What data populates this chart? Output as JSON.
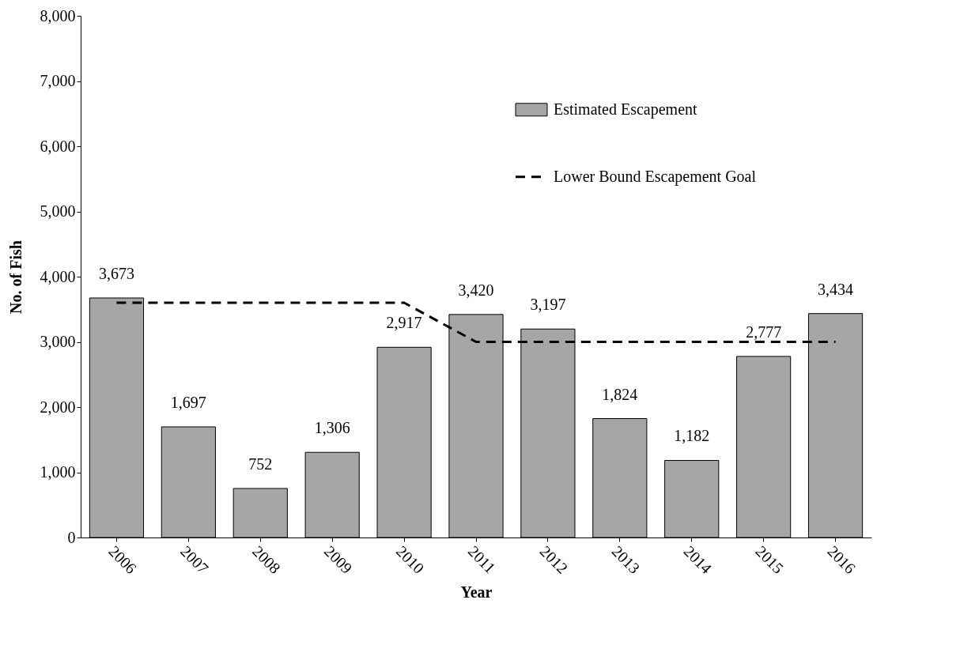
{
  "chart_data": {
    "type": "bar",
    "xlabel": "Year",
    "ylabel": "No. of  Fish",
    "categories": [
      "2006",
      "2007",
      "2008",
      "2009",
      "2010",
      "2011",
      "2012",
      "2013",
      "2014",
      "2015",
      "2016"
    ],
    "series": [
      {
        "name": "Estimated Escapement",
        "color": "#a6a6a6",
        "values": [
          3673,
          1697,
          752,
          1306,
          2917,
          3420,
          3197,
          1824,
          1182,
          2777,
          3434
        ],
        "value_labels": [
          "3,673",
          "1,697",
          "752",
          "1,306",
          "2,917",
          "3,420",
          "3,197",
          "1,824",
          "1,182",
          "2,777",
          "3,434"
        ]
      },
      {
        "name": "Lower Bound Escapement Goal",
        "type": "line",
        "color": "#000000",
        "line_style": "dashed",
        "values": [
          3600,
          3600,
          3600,
          3600,
          3600,
          3000,
          3000,
          3000,
          3000,
          3000,
          3000
        ]
      }
    ],
    "ylim": [
      0,
      8000
    ],
    "yticks": [
      0,
      {
        "value": 1000,
        "label": "1,000"
      },
      {
        "value": 2000,
        "label": "2,000"
      },
      {
        "value": 3000,
        "label": "3,000"
      },
      {
        "value": 4000,
        "label": "4,000"
      },
      {
        "value": 5000,
        "label": "5,000"
      },
      {
        "value": 6000,
        "label": "6,000"
      },
      {
        "value": 7000,
        "label": "7,000"
      },
      {
        "value": 8000,
        "label": "8,000"
      }
    ],
    "grid": false,
    "legend": "top right"
  }
}
